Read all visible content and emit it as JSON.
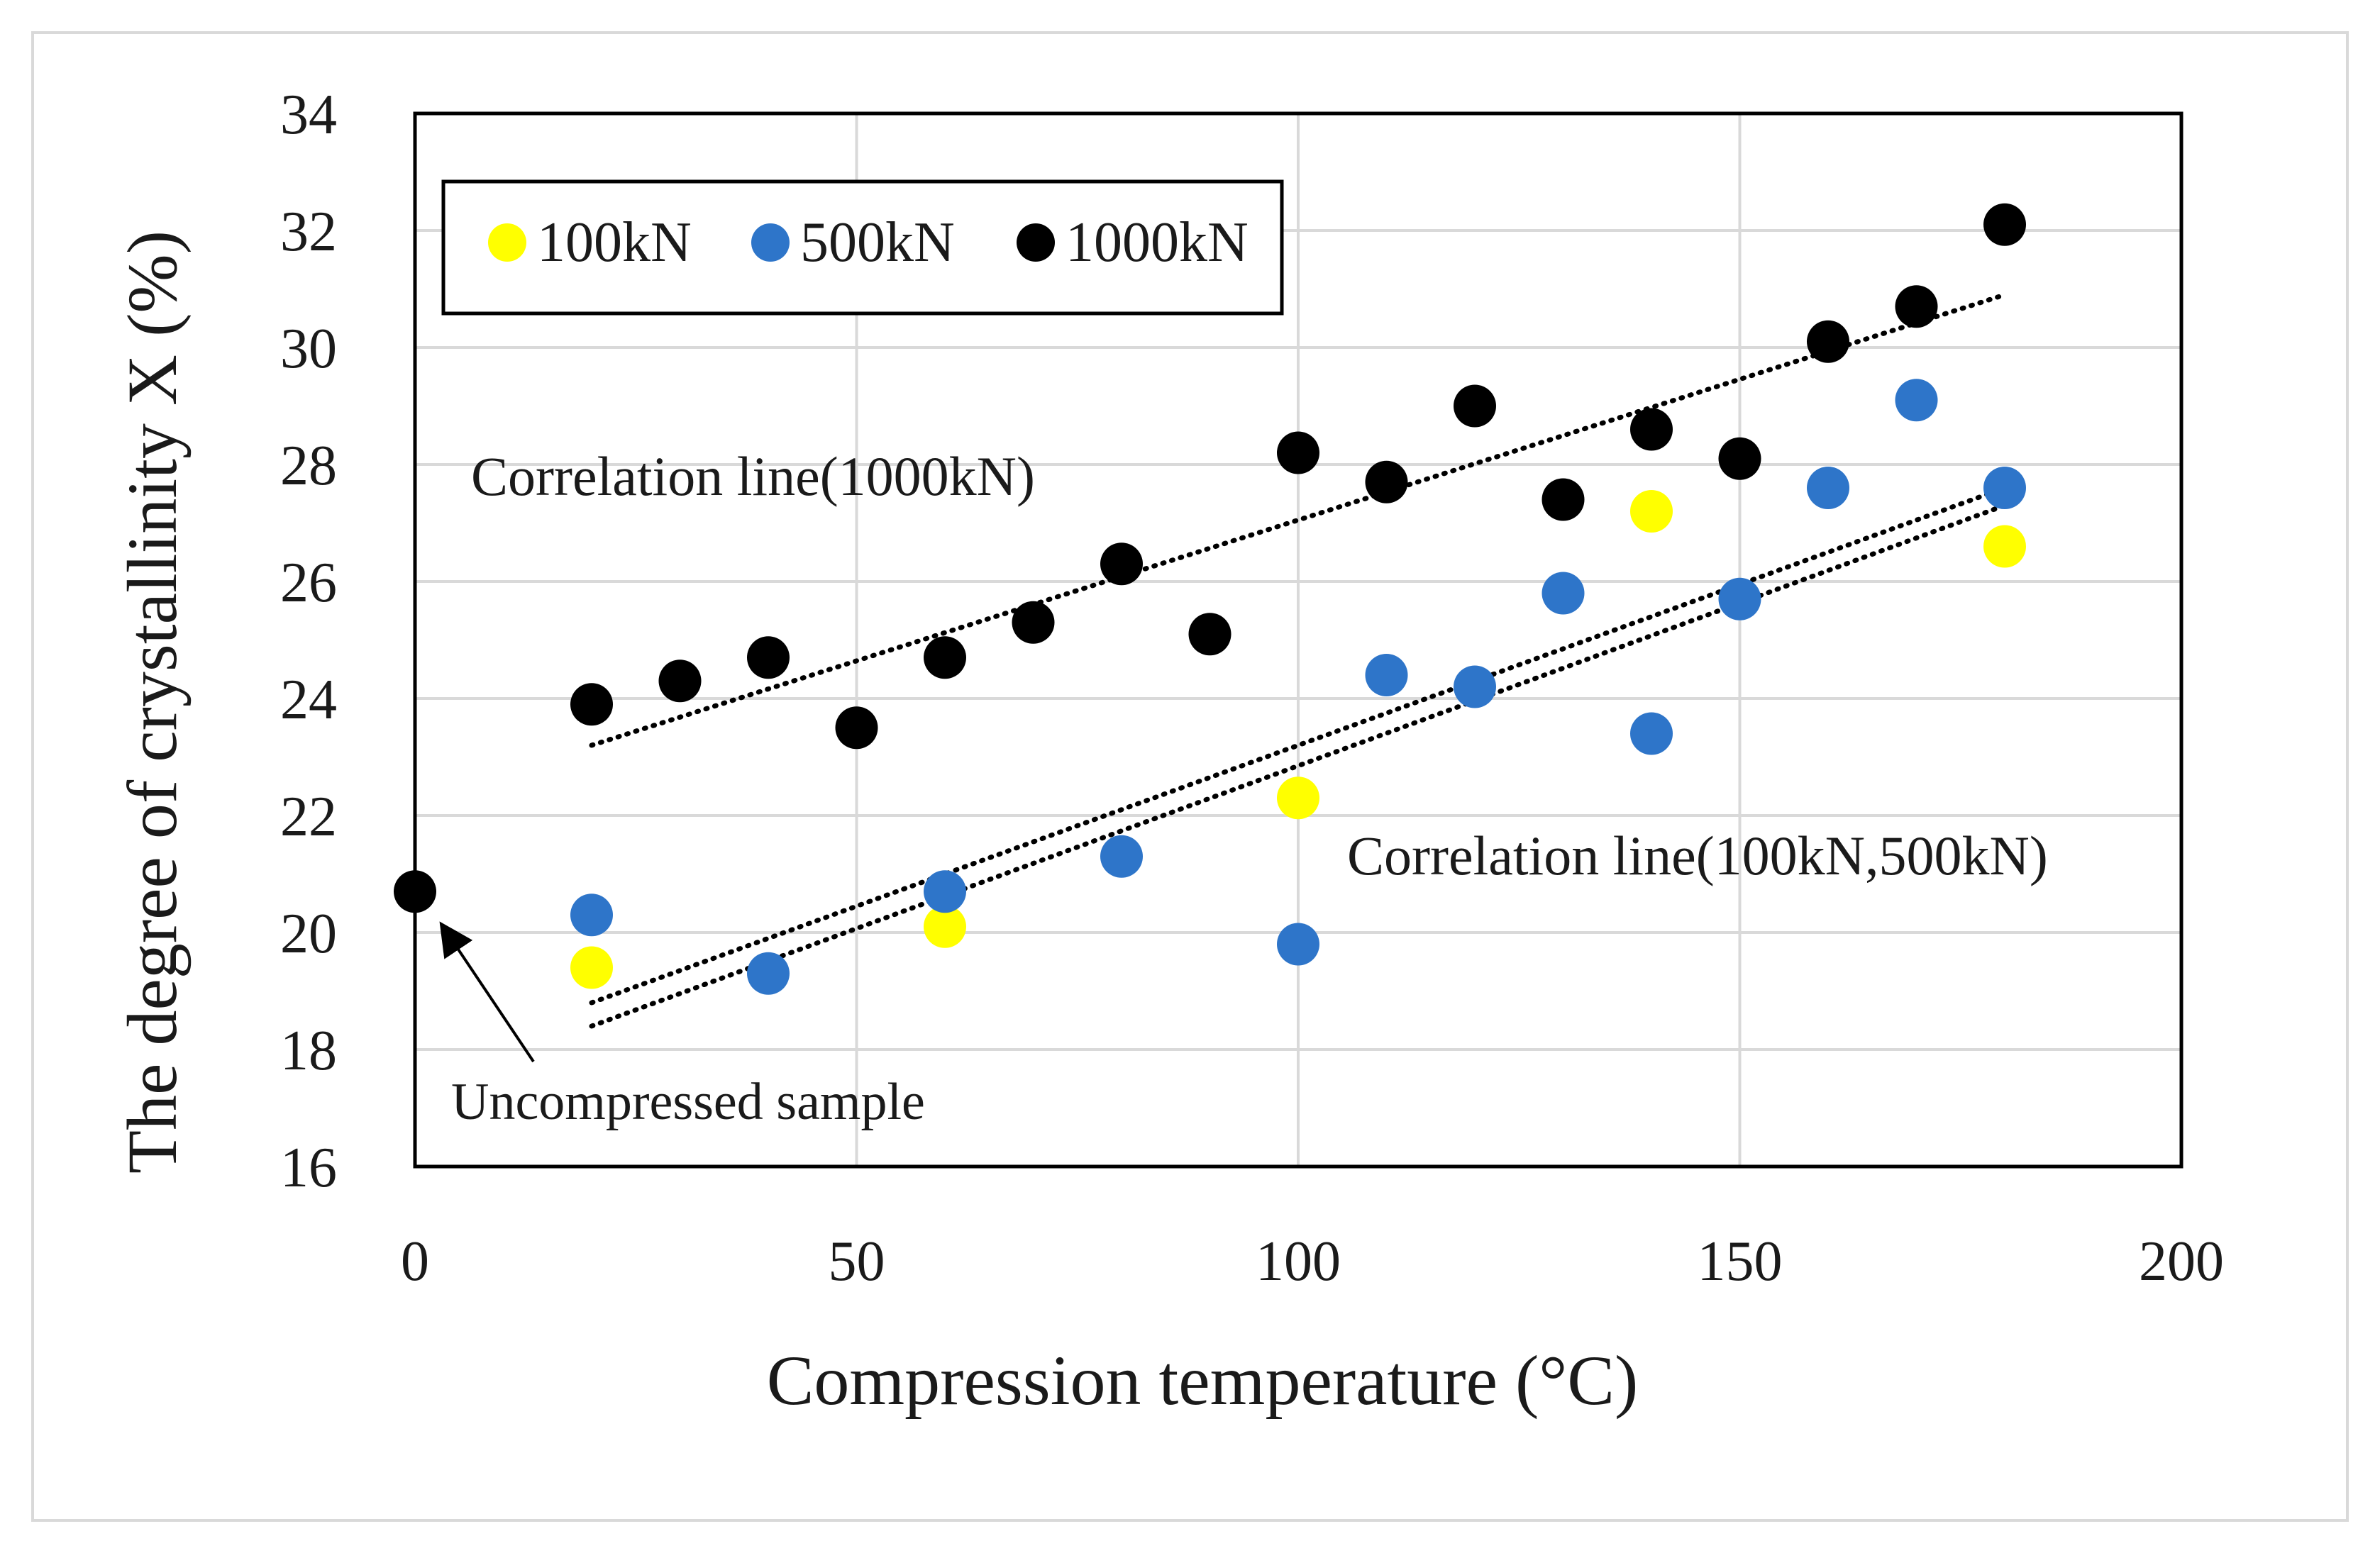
{
  "chart_data": {
    "type": "scatter",
    "xlabel": "Compression temperature (°C)",
    "ylabel": "The degree of crystallinity X (%)",
    "xlim": [
      0,
      200
    ],
    "ylim": [
      16,
      34
    ],
    "x_ticks": [
      0,
      50,
      100,
      150,
      200
    ],
    "y_ticks": [
      16,
      18,
      20,
      22,
      24,
      26,
      28,
      30,
      32,
      34
    ],
    "grid": true,
    "legend_placement": "top-left",
    "series": [
      {
        "name": "100kN",
        "color": "#ffff00",
        "points": [
          {
            "x": 20,
            "y": 19.4
          },
          {
            "x": 60,
            "y": 20.1
          },
          {
            "x": 100,
            "y": 22.3
          },
          {
            "x": 140,
            "y": 27.2
          },
          {
            "x": 180,
            "y": 26.6
          }
        ]
      },
      {
        "name": "500kN",
        "color": "#2e75c9",
        "points": [
          {
            "x": 20,
            "y": 20.3
          },
          {
            "x": 40,
            "y": 19.3
          },
          {
            "x": 60,
            "y": 20.7
          },
          {
            "x": 80,
            "y": 21.3
          },
          {
            "x": 100,
            "y": 19.8
          },
          {
            "x": 110,
            "y": 24.4
          },
          {
            "x": 120,
            "y": 24.2
          },
          {
            "x": 130,
            "y": 25.8
          },
          {
            "x": 140,
            "y": 23.4
          },
          {
            "x": 150,
            "y": 25.7
          },
          {
            "x": 160,
            "y": 27.6
          },
          {
            "x": 170,
            "y": 29.1
          },
          {
            "x": 180,
            "y": 27.6
          }
        ]
      },
      {
        "name": "1000kN",
        "color": "#000000",
        "points": [
          {
            "x": 0,
            "y": 20.7
          },
          {
            "x": 20,
            "y": 23.9
          },
          {
            "x": 30,
            "y": 24.3
          },
          {
            "x": 40,
            "y": 24.7
          },
          {
            "x": 50,
            "y": 23.5
          },
          {
            "x": 60,
            "y": 24.7
          },
          {
            "x": 70,
            "y": 25.3
          },
          {
            "x": 80,
            "y": 26.3
          },
          {
            "x": 90,
            "y": 25.1
          },
          {
            "x": 100,
            "y": 28.2
          },
          {
            "x": 110,
            "y": 27.7
          },
          {
            "x": 120,
            "y": 29.0
          },
          {
            "x": 130,
            "y": 27.4
          },
          {
            "x": 140,
            "y": 28.6
          },
          {
            "x": 150,
            "y": 28.1
          },
          {
            "x": 160,
            "y": 30.1
          },
          {
            "x": 170,
            "y": 30.7
          },
          {
            "x": 180,
            "y": 32.1
          }
        ]
      }
    ],
    "trendlines": [
      {
        "label": "Correlation line(1000kN)",
        "from": {
          "x": 20,
          "y": 23.2
        },
        "to": {
          "x": 180,
          "y": 30.9
        }
      },
      {
        "label": "Correlation line(100kN,500kN)",
        "from": {
          "x": 20,
          "y": 18.8
        },
        "to": {
          "x": 180,
          "y": 27.6
        }
      },
      {
        "label": "Correlation line(100kN,500kN)",
        "from": {
          "x": 20,
          "y": 18.4
        },
        "to": {
          "x": 180,
          "y": 27.3
        }
      }
    ],
    "annotations": [
      {
        "text": "Correlation line(1000kN)"
      },
      {
        "text": "Correlation line(100kN,500kN)"
      },
      {
        "text": "Uncompressed sample",
        "points_to": {
          "x": 0,
          "y": 20.7
        }
      }
    ]
  }
}
